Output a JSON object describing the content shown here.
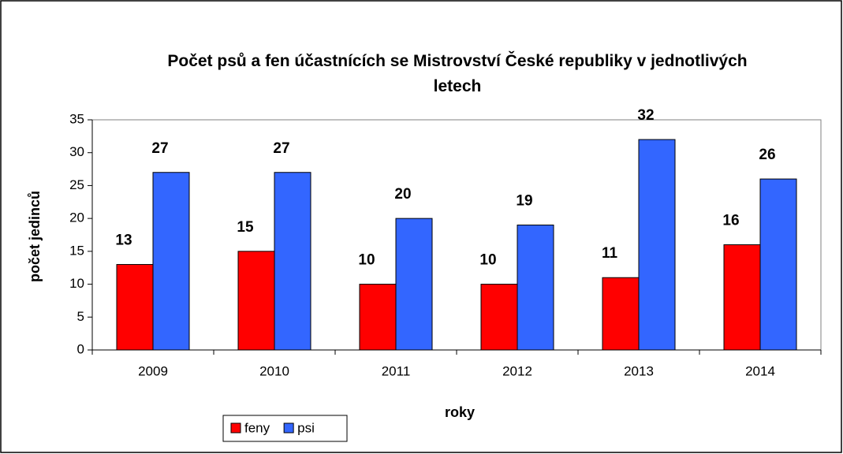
{
  "chart_data": {
    "type": "bar",
    "title": "Počet psů a fen účastnících se Mistrovství České republiky v jednotlivých letech",
    "x_label": "roky",
    "y_label": "počet jedinců",
    "categories": [
      "2009",
      "2010",
      "2011",
      "2012",
      "2013",
      "2014"
    ],
    "series": [
      {
        "name": "feny",
        "color": "#ff0000",
        "values": [
          13,
          15,
          10,
          10,
          11,
          16
        ]
      },
      {
        "name": "psi",
        "color": "#3366ff",
        "values": [
          27,
          27,
          20,
          19,
          32,
          26
        ]
      }
    ],
    "ylim": [
      0,
      35
    ],
    "yticks": [
      0,
      5,
      10,
      15,
      20,
      25,
      30,
      35
    ],
    "grid": false,
    "legend": "bottom"
  }
}
